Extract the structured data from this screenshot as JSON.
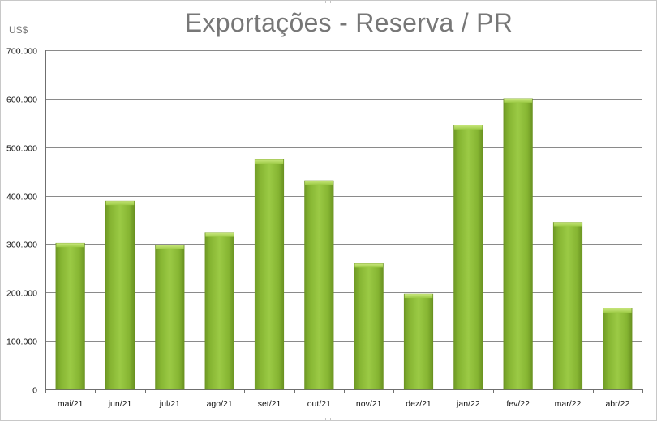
{
  "chart_data": {
    "type": "bar",
    "title": "Exportações - Reserva / PR",
    "ylabel": "US$",
    "xlabel": "",
    "ylim": [
      0,
      700000
    ],
    "yticks": [
      0,
      100000,
      200000,
      300000,
      400000,
      500000,
      600000,
      700000
    ],
    "ytick_labels": [
      "0",
      "100.000",
      "200.000",
      "300.000",
      "400.000",
      "500.000",
      "600.000",
      "700.000"
    ],
    "categories": [
      "mai/21",
      "jun/21",
      "jul/21",
      "ago/21",
      "set/21",
      "out/21",
      "nov/21",
      "dez/21",
      "jan/22",
      "fev/22",
      "mar/22",
      "abr/22"
    ],
    "values": [
      302000,
      389000,
      298000,
      323000,
      474000,
      431000,
      260000,
      197000,
      545000,
      600000,
      345000,
      167000
    ],
    "grid": true,
    "legend": "none",
    "bar_color": "#8fc23a"
  }
}
